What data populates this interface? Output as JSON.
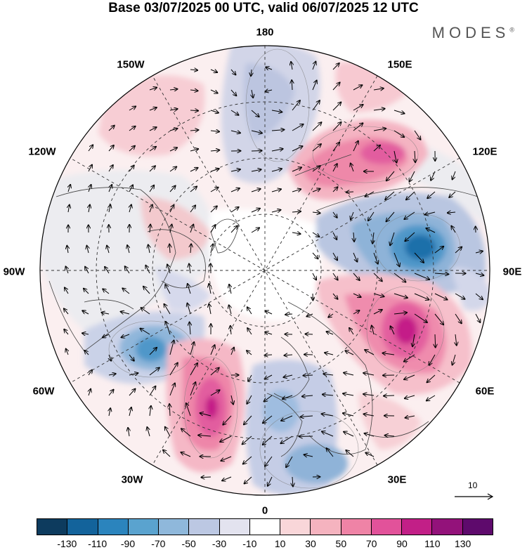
{
  "title": "Base 03/07/2025 00 UTC, valid 06/07/2025 12 UTC",
  "brand": "MODES",
  "brand_mark": "®",
  "longitude_labels": {
    "n180": "180",
    "e150": "150E",
    "e120": "120E",
    "e90": "90E",
    "e60": "60E",
    "e30": "30E",
    "n0": "0",
    "w30": "30W",
    "w60": "60W",
    "w90": "90W",
    "w120": "120W",
    "w150": "150W"
  },
  "reference_vector": {
    "label": "10"
  },
  "colorbar": {
    "colors": [
      "#0d3b5e",
      "#13639b",
      "#2b84bd",
      "#5aa3cf",
      "#8fb8db",
      "#bcc8e3",
      "#e3e3ef",
      "#ffffff",
      "#f9d6d9",
      "#f5b3bf",
      "#ef83a6",
      "#e2529a",
      "#c21f87",
      "#93127a",
      "#5e0a6c"
    ],
    "ticks": [
      "-130",
      "-110",
      "-90",
      "-70",
      "-50",
      "-30",
      "-10",
      "10",
      "30",
      "50",
      "70",
      "90",
      "110",
      "130"
    ]
  }
}
